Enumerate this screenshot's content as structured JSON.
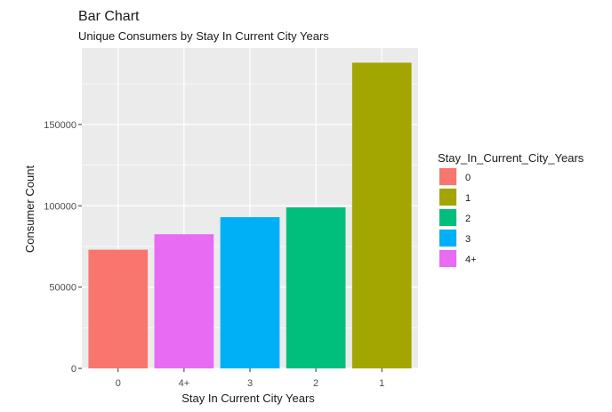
{
  "chart_data": {
    "type": "bar",
    "title": "Bar Chart",
    "subtitle": "Unique Consumers by Stay In Current City Years",
    "xlabel": "Stay In Current City Years",
    "ylabel": "Consumer Count",
    "categories": [
      "0",
      "4+",
      "3",
      "2",
      "1"
    ],
    "values": [
      73000,
      82500,
      93000,
      99000,
      188000
    ],
    "ylim": [
      0,
      197000
    ],
    "yticks": [
      0,
      50000,
      100000,
      150000
    ],
    "ytick_labels": [
      "0",
      "50000",
      "100000",
      "150000"
    ],
    "grid": true,
    "legend": {
      "title": "Stay_In_Current_City_Years",
      "position": "right",
      "items": [
        {
          "label": "0",
          "color": "#F8766D"
        },
        {
          "label": "1",
          "color": "#A3A500"
        },
        {
          "label": "2",
          "color": "#00BF7D"
        },
        {
          "label": "3",
          "color": "#00B0F6"
        },
        {
          "label": "4+",
          "color": "#E76BF3"
        }
      ]
    },
    "bar_colors": {
      "0": "#F8766D",
      "1": "#A3A500",
      "2": "#00BF7D",
      "3": "#00B0F6",
      "4+": "#E76BF3"
    },
    "panel_background": "#EBEBEB",
    "grid_color": "#FFFFFF"
  }
}
